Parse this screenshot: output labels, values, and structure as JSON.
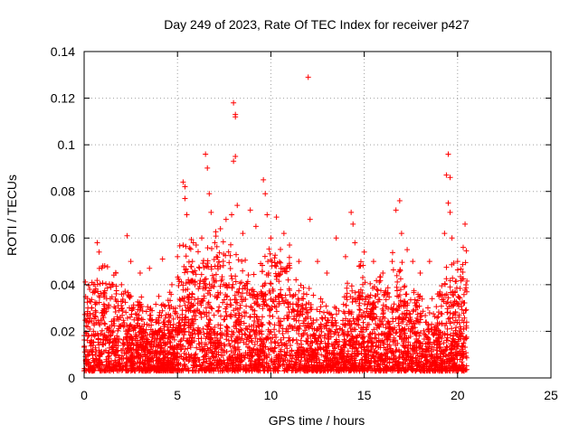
{
  "chart_data": {
    "type": "scatter",
    "title": "Day 249 of 2023, Rate Of TEC Index for receiver p427",
    "xlabel": "GPS time / hours",
    "ylabel": "ROTI / TECUs",
    "xlim": [
      0,
      25
    ],
    "ylim": [
      0,
      0.14
    ],
    "x_ticks": [
      0,
      5,
      10,
      15,
      20,
      25
    ],
    "x_tick_labels": [
      "0",
      "5",
      "10",
      "15",
      "20",
      "25"
    ],
    "y_ticks": [
      0,
      0.02,
      0.04,
      0.06,
      0.08,
      0.1,
      0.12,
      0.14
    ],
    "y_tick_labels": [
      "0",
      "0.02",
      "0.04",
      "0.06",
      "0.08",
      "0.1",
      "0.12",
      "0.14"
    ],
    "grid": true,
    "marker": "plus",
    "color": "#ff0000",
    "data_x_range": [
      0,
      20.5
    ],
    "series": [
      {
        "values": [
          [
            0.1,
            0.012
          ],
          [
            0.2,
            0.03
          ],
          [
            0.3,
            0.038
          ],
          [
            0.5,
            0.02
          ],
          [
            0.7,
            0.058
          ],
          [
            0.8,
            0.054
          ],
          [
            1.0,
            0.048
          ],
          [
            1.3,
            0.03
          ],
          [
            1.7,
            0.045
          ],
          [
            2.0,
            0.04
          ],
          [
            2.3,
            0.061
          ],
          [
            2.5,
            0.05
          ],
          [
            3.0,
            0.045
          ],
          [
            3.5,
            0.047
          ],
          [
            4.0,
            0.035
          ],
          [
            4.2,
            0.051
          ],
          [
            4.7,
            0.04
          ],
          [
            5.0,
            0.052
          ],
          [
            5.3,
            0.084
          ],
          [
            5.4,
            0.082
          ],
          [
            5.4,
            0.077
          ],
          [
            5.5,
            0.07
          ],
          [
            5.8,
            0.05
          ],
          [
            6.0,
            0.057
          ],
          [
            6.3,
            0.06
          ],
          [
            6.5,
            0.096
          ],
          [
            6.6,
            0.09
          ],
          [
            6.7,
            0.079
          ],
          [
            6.8,
            0.071
          ],
          [
            7.0,
            0.058
          ],
          [
            7.3,
            0.064
          ],
          [
            7.6,
            0.068
          ],
          [
            7.9,
            0.07
          ],
          [
            8.0,
            0.118
          ],
          [
            8.1,
            0.113
          ],
          [
            8.1,
            0.112
          ],
          [
            8.0,
            0.093
          ],
          [
            8.1,
            0.095
          ],
          [
            8.2,
            0.074
          ],
          [
            8.5,
            0.062
          ],
          [
            8.9,
            0.072
          ],
          [
            9.2,
            0.065
          ],
          [
            9.6,
            0.085
          ],
          [
            9.7,
            0.079
          ],
          [
            9.8,
            0.07
          ],
          [
            10.0,
            0.06
          ],
          [
            10.3,
            0.069
          ],
          [
            10.7,
            0.062
          ],
          [
            11.0,
            0.057
          ],
          [
            11.5,
            0.05
          ],
          [
            12.0,
            0.129
          ],
          [
            12.1,
            0.068
          ],
          [
            12.5,
            0.05
          ],
          [
            13.0,
            0.045
          ],
          [
            13.5,
            0.06
          ],
          [
            14.0,
            0.052
          ],
          [
            14.3,
            0.071
          ],
          [
            14.4,
            0.066
          ],
          [
            14.5,
            0.058
          ],
          [
            15.0,
            0.054
          ],
          [
            15.5,
            0.05
          ],
          [
            16.0,
            0.045
          ],
          [
            16.5,
            0.05
          ],
          [
            16.7,
            0.072
          ],
          [
            16.9,
            0.076
          ],
          [
            17.0,
            0.062
          ],
          [
            17.3,
            0.055
          ],
          [
            17.6,
            0.05
          ],
          [
            18.0,
            0.045
          ],
          [
            18.5,
            0.05
          ],
          [
            19.0,
            0.035
          ],
          [
            19.3,
            0.062
          ],
          [
            19.4,
            0.087
          ],
          [
            19.5,
            0.096
          ],
          [
            19.6,
            0.086
          ],
          [
            19.5,
            0.075
          ],
          [
            19.6,
            0.071
          ],
          [
            19.7,
            0.06
          ],
          [
            20.0,
            0.05
          ],
          [
            20.3,
            0.056
          ],
          [
            20.4,
            0.066
          ]
        ]
      }
    ]
  }
}
